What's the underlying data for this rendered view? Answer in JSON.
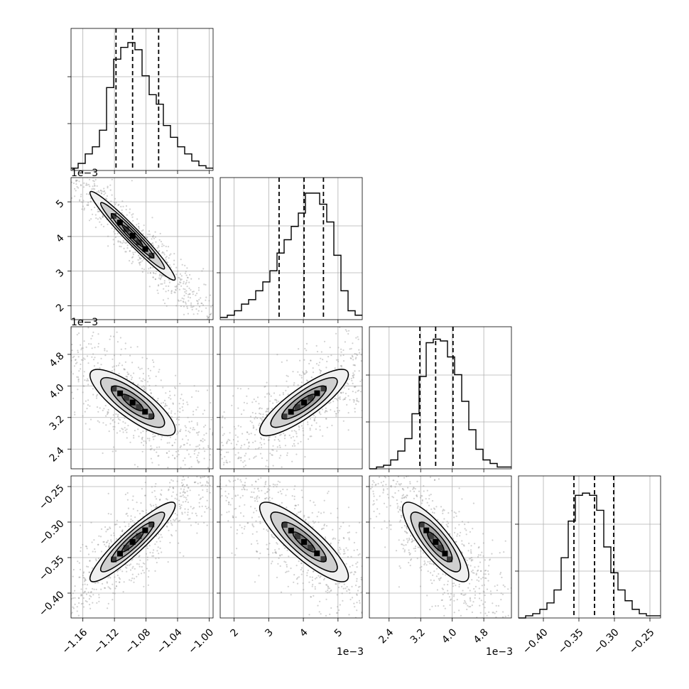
{
  "chart_data": {
    "type": "corner",
    "n_params": 4,
    "bins": 20,
    "params": [
      {
        "range": [
          -1.175,
          -0.995
        ],
        "ticks": [
          -1.16,
          -1.12,
          -1.08,
          -1.04,
          -1.0
        ],
        "tick_labels": [
          "−1.16",
          "−1.12",
          "−1.08",
          "−1.04",
          "−1.00"
        ],
        "sci_offset": "",
        "quantiles": [
          -1.118,
          -1.097,
          -1.064
        ],
        "hist_counts": [
          1,
          3,
          7,
          10,
          17,
          35,
          47,
          52,
          54,
          51,
          40,
          32,
          28,
          19,
          14,
          10,
          7,
          4,
          2,
          1
        ],
        "hist_ymax": 60
      },
      {
        "range": [
          1.6,
          5.7
        ],
        "ticks": [
          2,
          3,
          4,
          5
        ],
        "tick_labels": [
          "2",
          "3",
          "4",
          "5"
        ],
        "sci_offset": "1e−3",
        "quantiles": [
          3.3,
          4.02,
          4.58
        ],
        "hist_counts": [
          1,
          2,
          4,
          7,
          9,
          13,
          17,
          22,
          30,
          36,
          42,
          48,
          57,
          57,
          52,
          44,
          29,
          13,
          4,
          2
        ],
        "hist_ymax": 64
      },
      {
        "range": [
          1.9,
          5.5
        ],
        "ticks": [
          2.4,
          3.2,
          4.0,
          4.8
        ],
        "tick_labels": [
          "2.4",
          "3.2",
          "4.0",
          "4.8"
        ],
        "sci_offset": "1e−3",
        "quantiles": [
          3.18,
          3.58,
          4.02
        ],
        "hist_counts": [
          0,
          1,
          2,
          5,
          10,
          17,
          31,
          52,
          71,
          73,
          72,
          63,
          53,
          38,
          22,
          11,
          5,
          3,
          1,
          1
        ],
        "hist_ymax": 80
      },
      {
        "range": [
          -0.435,
          -0.235
        ],
        "ticks": [
          -0.4,
          -0.35,
          -0.3,
          -0.25
        ],
        "tick_labels": [
          "−0.40",
          "−0.35",
          "−0.30",
          "−0.25"
        ],
        "sci_offset": "",
        "quantiles": [
          -0.357,
          -0.328,
          -0.301
        ],
        "hist_counts": [
          0,
          1,
          2,
          4,
          7,
          13,
          28,
          45,
          57,
          58,
          57,
          50,
          33,
          21,
          13,
          8,
          4,
          2,
          1,
          1
        ],
        "hist_ymax": 66
      }
    ],
    "row_sci_labels": {
      "1": "1e−3",
      "2": "1e−3"
    },
    "pairs": [
      {
        "x": 0,
        "y": 1,
        "correlation": -0.97
      },
      {
        "x": 0,
        "y": 2,
        "correlation": -0.82
      },
      {
        "x": 1,
        "y": 2,
        "correlation": 0.85
      },
      {
        "x": 0,
        "y": 3,
        "correlation": 0.92
      },
      {
        "x": 1,
        "y": 3,
        "correlation": -0.86
      },
      {
        "x": 2,
        "y": 3,
        "correlation": -0.83
      }
    ],
    "contour_levels_sigma": [
      0.5,
      1.0,
      1.5,
      2.0
    ],
    "grid": true
  }
}
